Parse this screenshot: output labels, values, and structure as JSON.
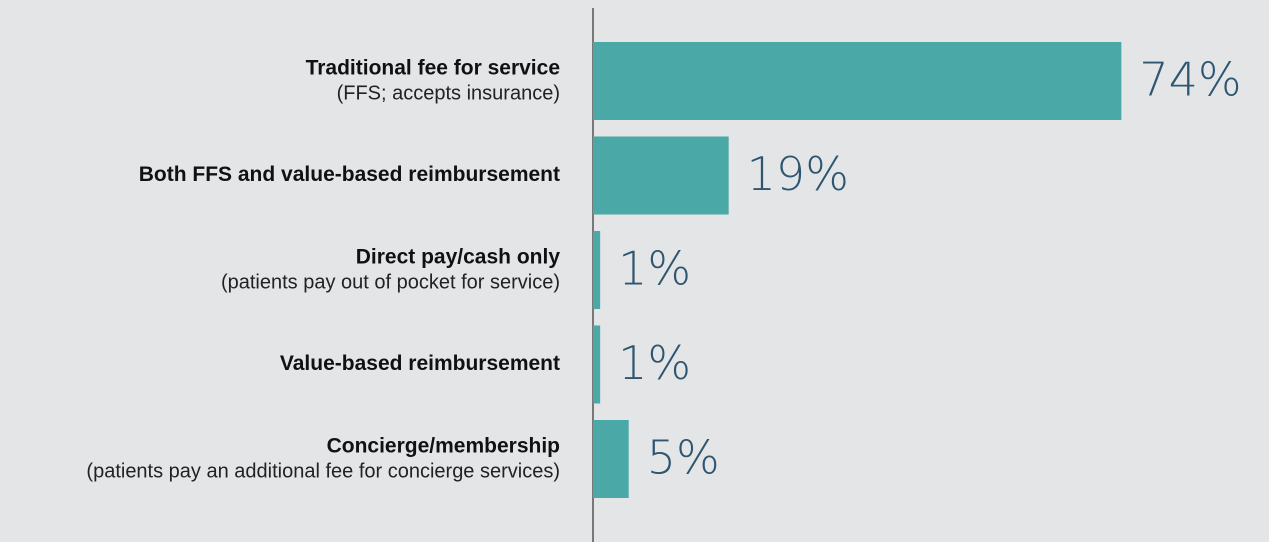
{
  "chart_data": {
    "type": "bar",
    "orientation": "horizontal",
    "categories": [
      "Traditional fee for service",
      "Both FFS and value-based reimbursement",
      "Direct pay/cash only",
      "Value-based reimbursement",
      "Concierge/membership"
    ],
    "sublabels": [
      "(FFS; accepts insurance)",
      null,
      "(patients pay out of pocket for service)",
      null,
      "(patients pay an additional fee for concierge services)"
    ],
    "values": [
      74,
      19,
      1,
      1,
      5
    ],
    "value_labels": [
      "74%",
      "19%",
      "1%",
      "1%",
      "5%"
    ],
    "color": "#4aa8a6"
  }
}
